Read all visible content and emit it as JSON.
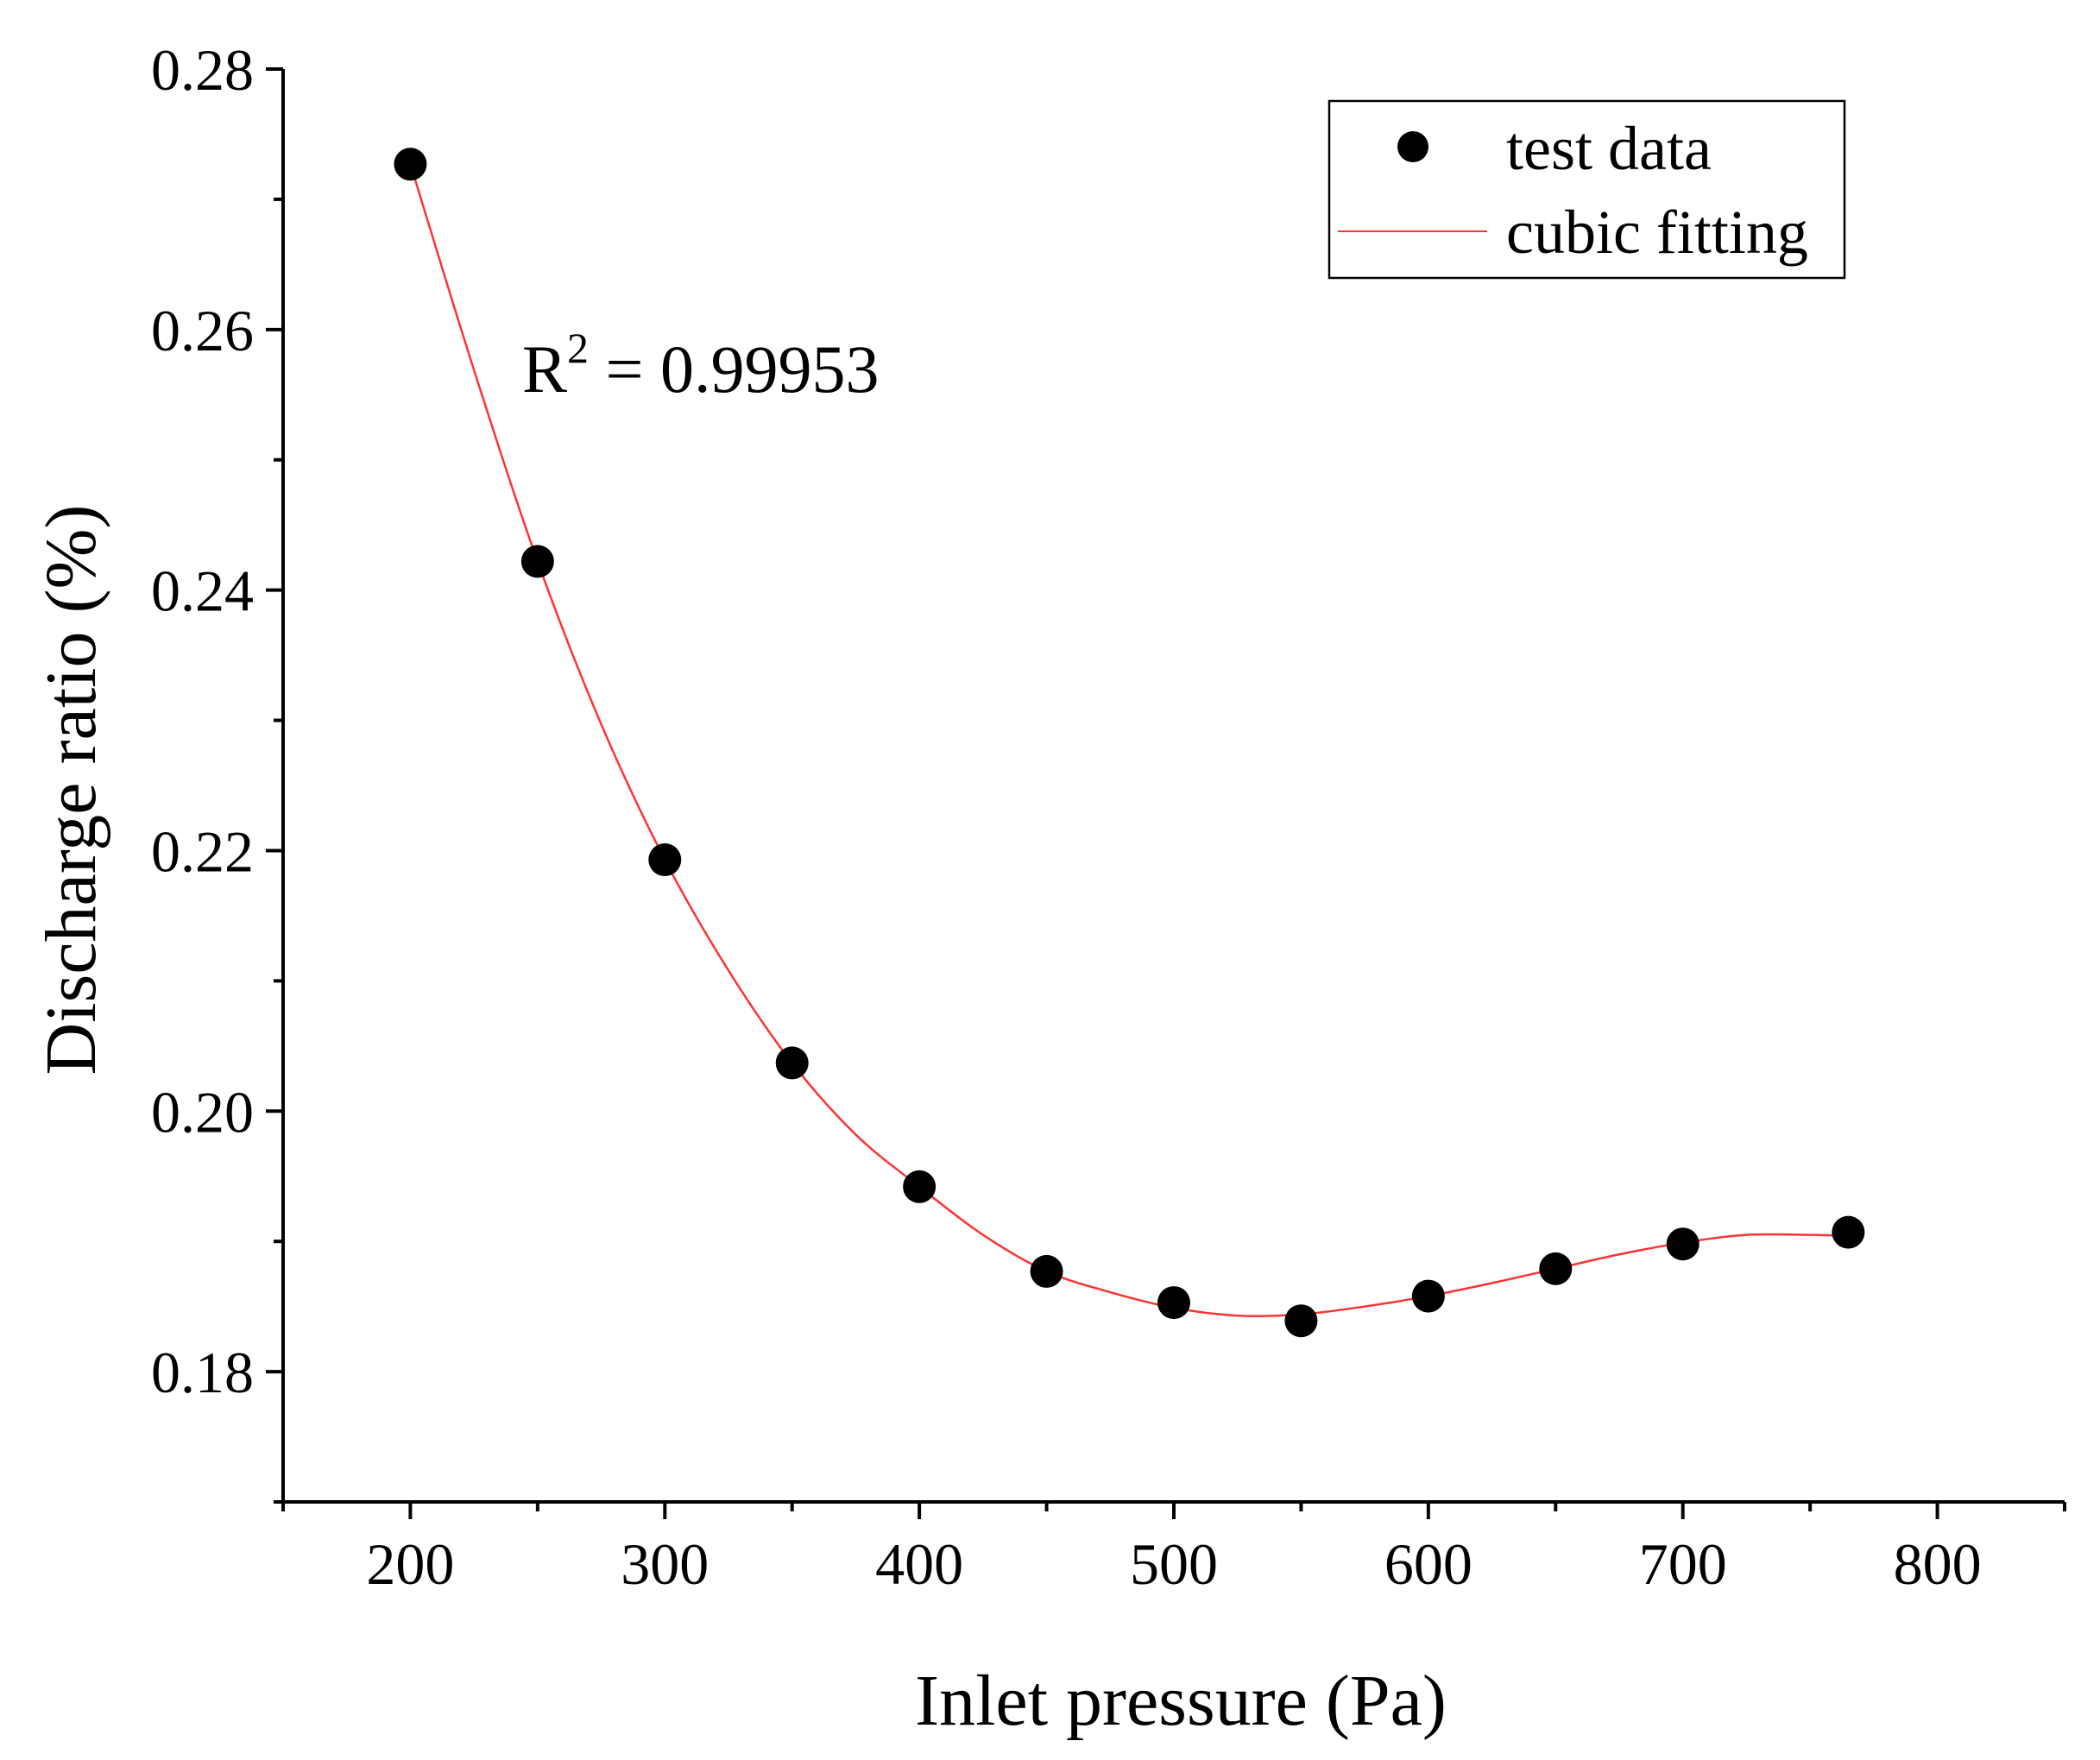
{
  "chart_data": {
    "type": "scatter",
    "xlabel": "Inlet pressure (Pa)",
    "ylabel": "Discharge ratio (%)",
    "xlim": [
      150,
      850
    ],
    "ylim": [
      0.17,
      0.28
    ],
    "xticks": [
      200,
      300,
      400,
      500,
      600,
      700,
      800
    ],
    "yticks": [
      0.18,
      0.2,
      0.22,
      0.24,
      0.26,
      0.28
    ],
    "xtick_labels": [
      "200",
      "300",
      "400",
      "500",
      "600",
      "700",
      "800"
    ],
    "ytick_labels": [
      "0.18",
      "0.20",
      "0.22",
      "0.24",
      "0.26",
      "0.28"
    ],
    "x_minor_step": 50,
    "y_minor_step": 0.01,
    "grid": false,
    "legend_position": "top-right",
    "annotation": {
      "prefix": "R",
      "superscript": "2",
      "text": " = 0.99953"
    },
    "series": [
      {
        "name": "test data",
        "kind": "scatter",
        "color": "#000000",
        "x": [
          200,
          250,
          300,
          350,
          400,
          450,
          500,
          550,
          600,
          650,
          700,
          765
        ],
        "y": [
          0.2727,
          0.2422,
          0.2193,
          0.2037,
          0.1942,
          0.1877,
          0.1853,
          0.1839,
          0.1858,
          0.1879,
          0.1898,
          0.1907
        ]
      },
      {
        "name": "cubic fitting",
        "kind": "line",
        "color": "#ff3333",
        "x": [
          200,
          225,
          250,
          275,
          300,
          325,
          350,
          375,
          400,
          425,
          450,
          475,
          500,
          525,
          550,
          575,
          600,
          625,
          650,
          675,
          700,
          725,
          750,
          765
        ],
        "y": [
          0.2727,
          0.2569,
          0.2422,
          0.2297,
          0.2193,
          0.2108,
          0.2037,
          0.1982,
          0.1942,
          0.1905,
          0.1877,
          0.1861,
          0.1849,
          0.1843,
          0.1844,
          0.185,
          0.1858,
          0.1868,
          0.1879,
          0.189,
          0.1899,
          0.1905,
          0.1905,
          0.1904
        ]
      }
    ]
  }
}
